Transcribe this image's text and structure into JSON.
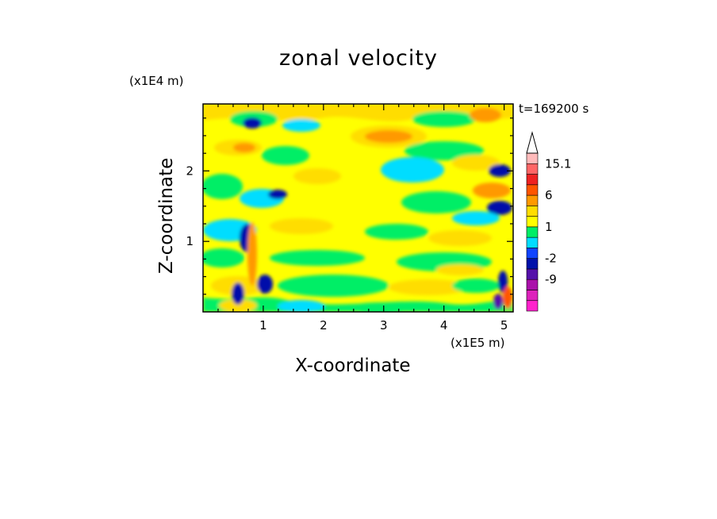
{
  "chart_data": {
    "type": "heatmap",
    "title": "zonal velocity",
    "xlabel": "X-coordinate",
    "ylabel": "Z-coordinate",
    "x_unit": "(x1E5 m)",
    "y_unit": "(x1E4 m)",
    "time_label": "t=169200 s",
    "xlim": [
      0,
      5.15
    ],
    "ylim": [
      0,
      2.95
    ],
    "x_ticks": [
      "1",
      "2",
      "3",
      "4",
      "5"
    ],
    "y_ticks": [
      "1",
      "2"
    ],
    "colorbar": {
      "levels": [
        -15,
        -12,
        -9,
        -6,
        -2,
        -1,
        0,
        1,
        2,
        4,
        6,
        9,
        12,
        15.1
      ],
      "tick_labels": [
        "15.1",
        "6",
        "1",
        "-2",
        "-9"
      ],
      "colors": [
        "#ff22cc",
        "#dd22bb",
        "#aa11aa",
        "#5511aa",
        "#0011aa",
        "#1144ff",
        "#00ddff",
        "#00ee66",
        "#ffff00",
        "#ffdd00",
        "#ff9900",
        "#ff5500",
        "#ee2222",
        "#ff6666",
        "#ffbbbb"
      ],
      "extend": "max"
    }
  }
}
